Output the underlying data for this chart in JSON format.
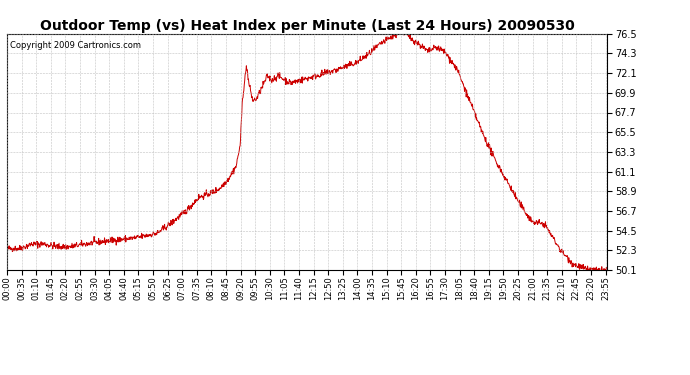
{
  "title": "Outdoor Temp (vs) Heat Index per Minute (Last 24 Hours) 20090530",
  "copyright": "Copyright 2009 Cartronics.com",
  "line_color": "#cc0000",
  "background_color": "#ffffff",
  "grid_color": "#bbbbbb",
  "yticks": [
    50.1,
    52.3,
    54.5,
    56.7,
    58.9,
    61.1,
    63.3,
    65.5,
    67.7,
    69.9,
    72.1,
    74.3,
    76.5
  ],
  "ymin": 50.1,
  "ymax": 76.5,
  "xtick_labels": [
    "00:00",
    "00:35",
    "01:10",
    "01:45",
    "02:20",
    "02:55",
    "03:30",
    "04:05",
    "04:40",
    "05:15",
    "05:50",
    "06:25",
    "07:00",
    "07:35",
    "08:10",
    "08:45",
    "09:20",
    "09:55",
    "10:30",
    "11:05",
    "11:40",
    "12:15",
    "12:50",
    "13:25",
    "14:00",
    "14:35",
    "15:10",
    "15:45",
    "16:20",
    "16:55",
    "17:30",
    "18:05",
    "18:40",
    "19:15",
    "19:50",
    "20:25",
    "21:00",
    "21:35",
    "22:10",
    "22:45",
    "23:20",
    "23:55"
  ],
  "title_fontsize": 10,
  "copyright_fontsize": 6,
  "ytick_fontsize": 7,
  "xtick_fontsize": 6
}
